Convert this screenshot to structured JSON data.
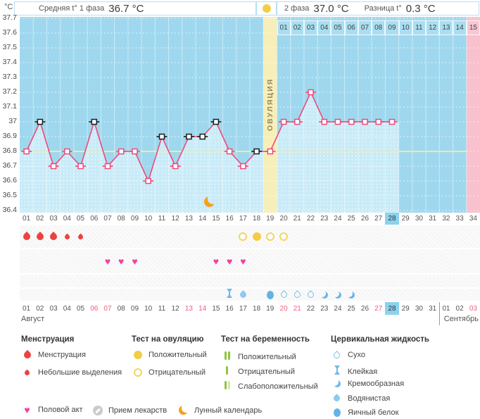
{
  "header": {
    "unit": "°C",
    "phase1_label": "Средняя t° 1 фаза",
    "phase1_value": "36.7 °C",
    "phase2_label": "2 фаза",
    "phase2_value": "37.0 °C",
    "diff_label": "Разница t°",
    "diff_value": "0.3 °C"
  },
  "chart_data": {
    "type": "line",
    "ylabel": "°C",
    "ylim": [
      36.4,
      37.7
    ],
    "ytick_step": 0.1,
    "ytick_labels": [
      "37.7",
      "37.6",
      "37.5",
      "37.4",
      "37.3",
      "37.2",
      "37.1",
      "37",
      "36.9",
      "36.8",
      "36.7",
      "36.6",
      "36.5",
      "36.4"
    ],
    "x_count": 34,
    "points": [
      {
        "day": 1,
        "t": 36.8,
        "marker": "pink"
      },
      {
        "day": 2,
        "t": 37.0,
        "marker": "black"
      },
      {
        "day": 3,
        "t": 36.7,
        "marker": "pink"
      },
      {
        "day": 4,
        "t": 36.8,
        "marker": "pink"
      },
      {
        "day": 5,
        "t": 36.7,
        "marker": "pink"
      },
      {
        "day": 6,
        "t": 37.0,
        "marker": "black"
      },
      {
        "day": 7,
        "t": 36.7,
        "marker": "pink"
      },
      {
        "day": 8,
        "t": 36.8,
        "marker": "pink"
      },
      {
        "day": 9,
        "t": 36.8,
        "marker": "pink"
      },
      {
        "day": 10,
        "t": 36.6,
        "marker": "pink"
      },
      {
        "day": 11,
        "t": 36.9,
        "marker": "black"
      },
      {
        "day": 12,
        "t": 36.7,
        "marker": "pink"
      },
      {
        "day": 13,
        "t": 36.9,
        "marker": "black"
      },
      {
        "day": 14,
        "t": 36.9,
        "marker": "black"
      },
      {
        "day": 15,
        "t": 37.0,
        "marker": "black"
      },
      {
        "day": 16,
        "t": 36.8,
        "marker": "pink"
      },
      {
        "day": 17,
        "t": 36.7,
        "marker": "pink"
      },
      {
        "day": 18,
        "t": 36.8,
        "marker": "black"
      },
      {
        "day": 19,
        "t": 36.8,
        "marker": "pink"
      },
      {
        "day": 20,
        "t": 37.0,
        "marker": "pink"
      },
      {
        "day": 21,
        "t": 37.0,
        "marker": "pink"
      },
      {
        "day": 22,
        "t": 37.2,
        "marker": "pink"
      },
      {
        "day": 23,
        "t": 37.0,
        "marker": "pink"
      },
      {
        "day": 24,
        "t": 37.0,
        "marker": "pink"
      },
      {
        "day": 25,
        "t": 37.0,
        "marker": "pink"
      },
      {
        "day": 26,
        "t": 37.0,
        "marker": "pink"
      },
      {
        "day": 27,
        "t": 37.0,
        "marker": "pink"
      },
      {
        "day": 28,
        "t": 37.0,
        "marker": "pink"
      }
    ],
    "coverline": 36.8,
    "ovulation_day": 19,
    "ovulation_label": "ОВУЛЯЦИЯ",
    "dpo_labels": [
      "01",
      "02",
      "03",
      "04",
      "05",
      "06",
      "07",
      "08",
      "09",
      "10",
      "11",
      "12",
      "13",
      "14",
      "15"
    ],
    "dpo_highlight": "15",
    "expected_period_day": 34,
    "today_day": 28,
    "moon_day": 16,
    "grid": "dotted-horizontal",
    "legend_position": "bottom"
  },
  "rows": {
    "cycle_days": [
      "01",
      "02",
      "03",
      "04",
      "05",
      "06",
      "07",
      "08",
      "09",
      "10",
      "11",
      "12",
      "13",
      "14",
      "15",
      "16",
      "17",
      "18",
      "19",
      "20",
      "21",
      "22",
      "23",
      "24",
      "25",
      "26",
      "27",
      "28",
      "29",
      "30",
      "31",
      "32",
      "33",
      "34"
    ],
    "menstruation": [
      {
        "day": 1,
        "type": "large"
      },
      {
        "day": 2,
        "type": "large"
      },
      {
        "day": 3,
        "type": "large"
      },
      {
        "day": 4,
        "type": "small"
      },
      {
        "day": 5,
        "type": "small"
      }
    ],
    "ovulation_tests": [
      {
        "day": 17,
        "result": "negative"
      },
      {
        "day": 18,
        "result": "positive"
      },
      {
        "day": 19,
        "result": "negative"
      },
      {
        "day": 20,
        "result": "negative"
      }
    ],
    "intercourse_days": [
      7,
      8,
      9,
      15,
      16,
      17
    ],
    "medication_days": [],
    "cervical": [
      {
        "day": 16,
        "type": "sticky"
      },
      {
        "day": 17,
        "type": "watery"
      },
      {
        "day": 19,
        "type": "eggwhite"
      },
      {
        "day": 20,
        "type": "dry"
      },
      {
        "day": 21,
        "type": "dry"
      },
      {
        "day": 22,
        "type": "dry"
      },
      {
        "day": 23,
        "type": "creamy"
      },
      {
        "day": 24,
        "type": "creamy"
      },
      {
        "day": 25,
        "type": "creamy"
      }
    ],
    "dates": {
      "labels": [
        "01",
        "02",
        "03",
        "04",
        "05",
        "06",
        "07",
        "08",
        "09",
        "10",
        "11",
        "12",
        "13",
        "14",
        "15",
        "16",
        "17",
        "18",
        "19",
        "20",
        "21",
        "22",
        "23",
        "24",
        "25",
        "26",
        "27",
        "28",
        "29",
        "30",
        "31",
        "01",
        "02",
        "03"
      ],
      "red_days": [
        6,
        7,
        13,
        14,
        20,
        21,
        27,
        34
      ],
      "today": 28,
      "month_break_after": 31
    },
    "months": {
      "august": "Август",
      "september": "Сентябрь"
    }
  },
  "legend": {
    "menstruation": {
      "title": "Менструация",
      "items": [
        {
          "icon": "mens-large",
          "label": "Менструация"
        },
        {
          "icon": "mens-small",
          "label": "Небольшие выделения"
        }
      ]
    },
    "ovulation_test": {
      "title": "Тест на овуляцию",
      "items": [
        {
          "icon": "ovu-pos",
          "label": "Положительный"
        },
        {
          "icon": "ovu-neg",
          "label": "Отрицательный"
        }
      ]
    },
    "pregnancy_test": {
      "title": "Тест на беременность",
      "items": [
        {
          "icon": "preg-pos",
          "label": "Положительный"
        },
        {
          "icon": "preg-neg",
          "label": "Отрицательный"
        },
        {
          "icon": "preg-weak",
          "label": "Слабоположительный"
        }
      ]
    },
    "cervical_fluid": {
      "title": "Цервикальная жидкость",
      "items": [
        {
          "icon": "dry",
          "label": "Сухо"
        },
        {
          "icon": "sticky",
          "label": "Клейкая"
        },
        {
          "icon": "creamy",
          "label": "Кремообразная"
        },
        {
          "icon": "watery",
          "label": "Водянистая"
        },
        {
          "icon": "eggwhite",
          "label": "Яичный белок"
        }
      ]
    },
    "misc": [
      {
        "icon": "heart",
        "label": "Половой акт"
      },
      {
        "icon": "pill",
        "label": "Прием лекарств"
      },
      {
        "icon": "moon",
        "label": "Лунный календарь"
      }
    ]
  },
  "colors": {
    "chart_bg": "#9fd8ee",
    "area_fill": "#c9ebf8",
    "line": "#ee4a7b",
    "marker_black": "#1b1b1b",
    "coverline": "#f1ec96",
    "ovulation_band": "#f7efb9",
    "ovulation_text": "#95875a",
    "expected_period_pink": "#f9c0ce",
    "dpo_cell": "#a9def2",
    "dpo_pink": "#f9c6d2",
    "today_highlight": "#8cd2ee",
    "date_red": "#ee5f7e",
    "menstruation_red": "#ee4141",
    "test_yellow": "#f3cd45",
    "pregnancy_green": "#8dc63f",
    "cervical_blue": "#74bde9",
    "heart_pink": "#f2419c",
    "moon_orange": "#f6a01d"
  }
}
